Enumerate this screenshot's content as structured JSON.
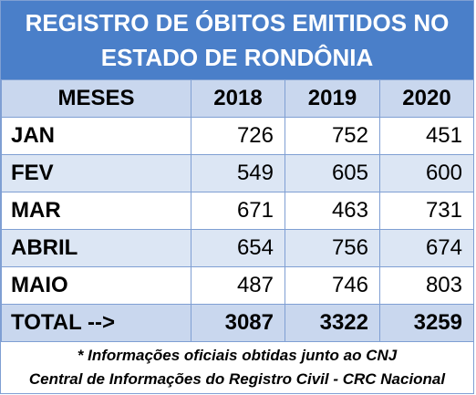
{
  "title": {
    "line1": "REGISTRO DE ÓBITOS EMITIDOS NO",
    "line2": "ESTADO DE RONDÔNIA"
  },
  "table": {
    "headers": [
      "MESES",
      "2018",
      "2019",
      "2020"
    ],
    "rows": [
      {
        "mes": "JAN",
        "v2018": "726",
        "v2019": "752",
        "v2020": "451"
      },
      {
        "mes": "FEV",
        "v2018": "549",
        "v2019": "605",
        "v2020": "600"
      },
      {
        "mes": "MAR",
        "v2018": "671",
        "v2019": "463",
        "v2020": "731"
      },
      {
        "mes": "ABRIL",
        "v2018": "654",
        "v2019": "756",
        "v2020": "674"
      },
      {
        "mes": "MAIO",
        "v2018": "487",
        "v2019": "746",
        "v2020": "803"
      }
    ],
    "total": {
      "mes": "TOTAL -->",
      "v2018": "3087",
      "v2019": "3322",
      "v2020": "3259"
    }
  },
  "footnote": {
    "line1": "* Informações oficiais obtidas junto ao CNJ",
    "line2": "Central de Informações do Registro Civil - CRC Nacional"
  },
  "colors": {
    "title_bg": "#4a7fc9",
    "header_bg": "#c9d7ee",
    "alt_row_bg": "#dce6f4",
    "border": "#7f9fd3"
  }
}
